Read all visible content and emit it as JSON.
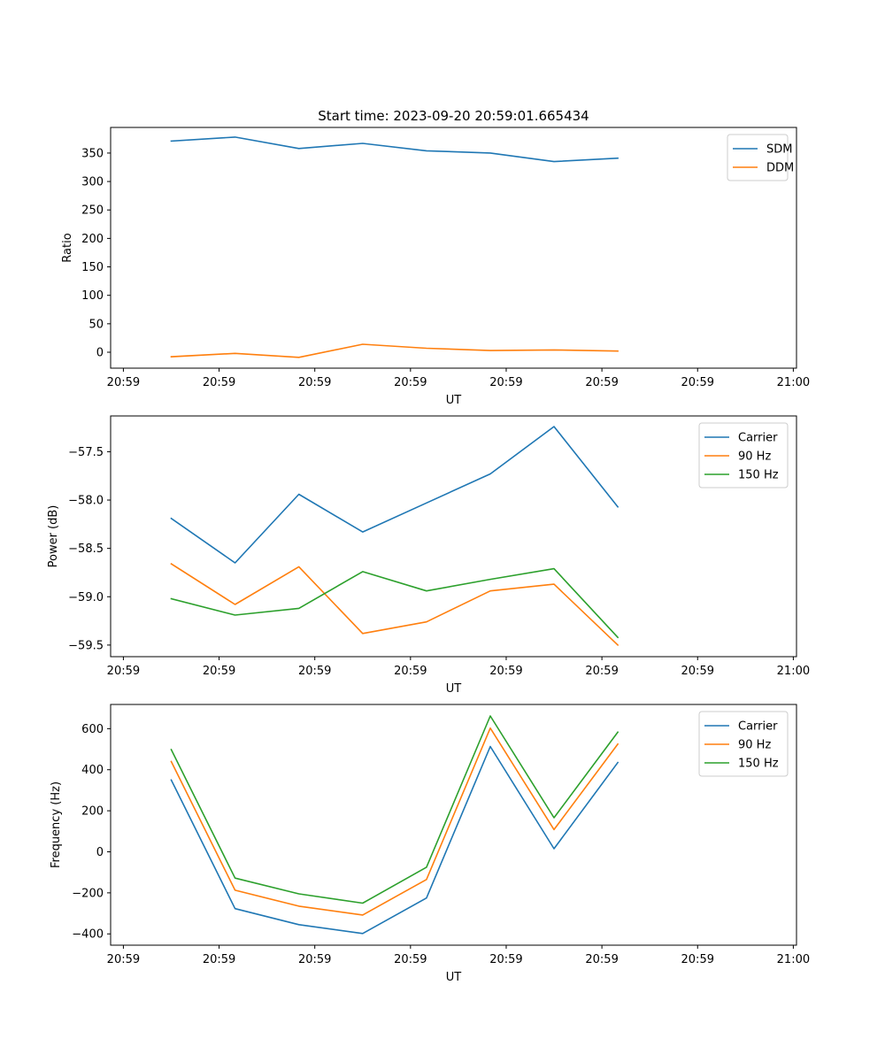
{
  "chart_data": [
    {
      "type": "line",
      "title": "Start time: 2023-09-20 20:59:01.665434",
      "xlabel": "UT",
      "ylabel": "Ratio",
      "x_tick_labels": [
        "20:59",
        "20:59",
        "20:59",
        "20:59",
        "20:59",
        "20:59",
        "20:59",
        "21:00"
      ],
      "x": [
        1,
        2,
        3,
        4,
        5,
        6,
        7,
        8
      ],
      "x_ticks": [
        0.25,
        1.75,
        3.25,
        4.75,
        6.25,
        7.75,
        9.25,
        10.75
      ],
      "xlim": [
        0.05,
        10.8
      ],
      "ylim": [
        -28,
        395
      ],
      "y_ticks": [
        0,
        50,
        100,
        150,
        200,
        250,
        300,
        350
      ],
      "y_tick_labels": [
        "0",
        "50",
        "100",
        "150",
        "200",
        "250",
        "300",
        "350"
      ],
      "legend_position": "top-right",
      "series": [
        {
          "name": "SDM",
          "color": "#1f77b4",
          "values": [
            371,
            378,
            358,
            367,
            354,
            350,
            335,
            341
          ]
        },
        {
          "name": "DDM",
          "color": "#ff7f0e",
          "values": [
            -8,
            -2,
            -9,
            14,
            7,
            3,
            4,
            2
          ]
        }
      ]
    },
    {
      "type": "line",
      "title": "",
      "xlabel": "UT",
      "ylabel": "Power (dB)",
      "x_tick_labels": [
        "20:59",
        "20:59",
        "20:59",
        "20:59",
        "20:59",
        "20:59",
        "20:59",
        "21:00"
      ],
      "x": [
        1,
        2,
        3,
        4,
        5,
        6,
        7,
        8
      ],
      "x_ticks": [
        0.25,
        1.75,
        3.25,
        4.75,
        6.25,
        7.75,
        9.25,
        10.75
      ],
      "xlim": [
        0.05,
        10.8
      ],
      "ylim": [
        -59.62,
        -57.13
      ],
      "y_ticks": [
        -57.5,
        -58.0,
        -58.5,
        -59.0,
        -59.5
      ],
      "y_tick_labels": [
        "−57.5",
        "−58.0",
        "−58.5",
        "−59.0",
        "−59.5"
      ],
      "legend_position": "top-right",
      "series": [
        {
          "name": "Carrier",
          "color": "#1f77b4",
          "values": [
            -58.19,
            -58.65,
            -57.94,
            -58.33,
            -58.03,
            -57.73,
            -57.24,
            -58.07
          ]
        },
        {
          "name": "90 Hz",
          "color": "#ff7f0e",
          "values": [
            -58.66,
            -59.08,
            -58.69,
            -59.38,
            -59.26,
            -58.94,
            -58.87,
            -59.5
          ]
        },
        {
          "name": "150 Hz",
          "color": "#2ca02c",
          "values": [
            -59.02,
            -59.19,
            -59.12,
            -58.74,
            -58.94,
            -58.82,
            -58.71,
            -59.42
          ]
        }
      ]
    },
    {
      "type": "line",
      "title": "",
      "xlabel": "UT",
      "ylabel": "Frequency (Hz)",
      "x_tick_labels": [
        "20:59",
        "20:59",
        "20:59",
        "20:59",
        "20:59",
        "20:59",
        "20:59",
        "21:00"
      ],
      "x": [
        1,
        2,
        3,
        4,
        5,
        6,
        7,
        8
      ],
      "x_ticks": [
        0.25,
        1.75,
        3.25,
        4.75,
        6.25,
        7.75,
        9.25,
        10.75
      ],
      "xlim": [
        0.05,
        10.8
      ],
      "ylim": [
        -455,
        718
      ],
      "y_ticks": [
        600,
        400,
        200,
        0,
        -200,
        -400
      ],
      "y_tick_labels": [
        "600",
        "400",
        "200",
        "0",
        "−200",
        "−400"
      ],
      "legend_position": "top-right",
      "series": [
        {
          "name": "Carrier",
          "color": "#1f77b4",
          "values": [
            350,
            -277,
            -355,
            -398,
            -225,
            513,
            15,
            435
          ]
        },
        {
          "name": "90 Hz",
          "color": "#ff7f0e",
          "values": [
            440,
            -187,
            -265,
            -308,
            -135,
            603,
            108,
            525
          ]
        },
        {
          "name": "150 Hz",
          "color": "#2ca02c",
          "values": [
            498,
            -128,
            -205,
            -250,
            -75,
            662,
            166,
            583
          ]
        }
      ]
    }
  ]
}
